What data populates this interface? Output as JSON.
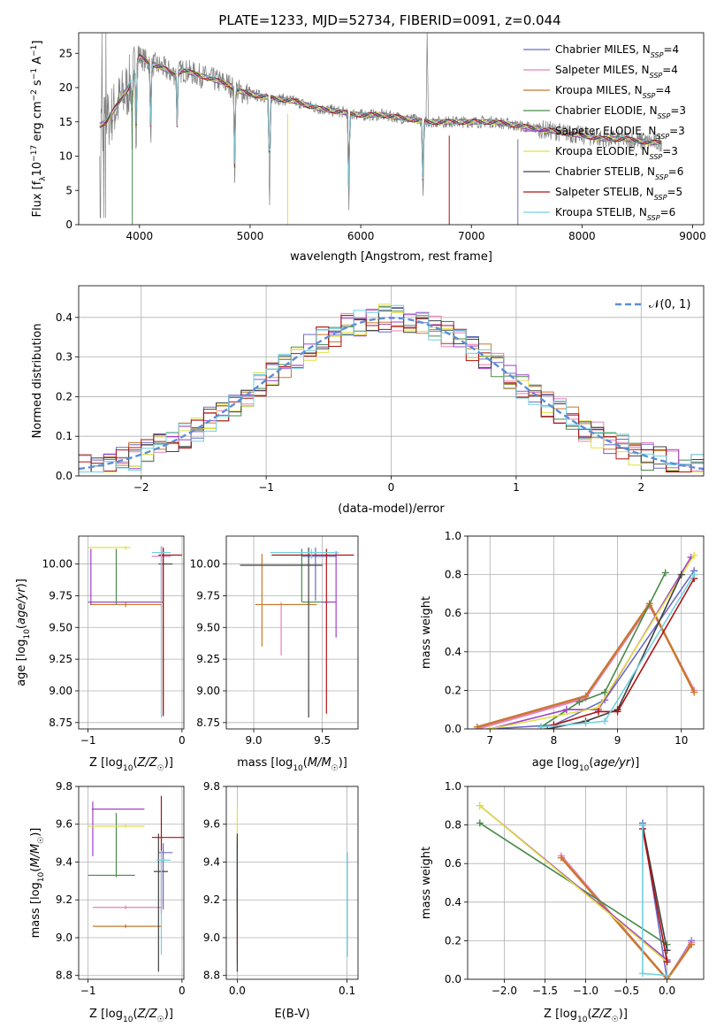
{
  "figure": {
    "title": "PLATE=1233, MJD=52734, FIBERID=0091, z=0.044"
  },
  "model_colors": [
    "#6a6ac8",
    "#e87fb8",
    "#c8782c",
    "#4a8a4a",
    "#a040c8",
    "#e0e040",
    "#404040",
    "#b01010",
    "#70d0e0"
  ],
  "chart_data": [
    {
      "id": "spectrum",
      "type": "line",
      "title": "PLATE=1233, MJD=52734, FIBERID=0091, z=0.044",
      "xlabel": "wavelength [Angstrom, rest frame]",
      "ylabel": "Flux [f_λ 10^-17 erg cm^-2 s^-1 A^-1]",
      "xlim": [
        3450,
        9100
      ],
      "ylim": [
        0,
        28
      ],
      "xticks": [
        4000,
        5000,
        6000,
        7000,
        8000,
        9000
      ],
      "yticks": [
        0,
        5,
        10,
        15,
        20,
        25
      ],
      "grid": false,
      "legend_position": "top-right",
      "data_color": "#808080",
      "continuum_x": [
        3640,
        3700,
        3800,
        3900,
        4000,
        4100,
        4200,
        4300,
        4400,
        4500,
        4600,
        4700,
        4800,
        4900,
        5000,
        5200,
        5400,
        5600,
        5800,
        6000,
        6200,
        6400,
        6600,
        6800,
        7000,
        7200,
        7400,
        7600,
        7800,
        8000,
        8200,
        8400,
        8600,
        8800,
        9000
      ],
      "continuum_y": [
        14.5,
        15.0,
        17.5,
        20.0,
        24.5,
        23.5,
        23.0,
        22.0,
        22.5,
        22.0,
        21.5,
        21.0,
        20.5,
        19.5,
        19.0,
        18.5,
        18.0,
        17.0,
        16.5,
        16.0,
        16.0,
        15.5,
        15.0,
        15.0,
        15.0,
        15.0,
        14.5,
        14.0,
        13.5,
        13.0,
        12.5,
        12.5,
        12.0,
        12.0,
        12.0
      ],
      "data_end_x": 8720,
      "absorption_dips": [
        [
          3934,
          8.0
        ],
        [
          3969,
          10.0
        ],
        [
          4102,
          11.0
        ],
        [
          4340,
          8.5
        ],
        [
          4861,
          13.0
        ],
        [
          5175,
          17.0
        ],
        [
          5893,
          15.0
        ],
        [
          6563,
          12.0
        ]
      ],
      "model_dropouts": [
        3935,
        5340,
        6800,
        7420
      ],
      "series": [
        {
          "name": "Chabrier MILES, N",
          "sub": "SSP",
          "tail": "=4"
        },
        {
          "name": "Salpeter MILES, N",
          "sub": "SSP",
          "tail": "=4"
        },
        {
          "name": "Kroupa MILES, N",
          "sub": "SSP",
          "tail": "=4"
        },
        {
          "name": "Chabrier ELODIE, N",
          "sub": "SSP",
          "tail": "=3"
        },
        {
          "name": "Salpeter ELODIE, N",
          "sub": "SSP",
          "tail": "=3"
        },
        {
          "name": "Kroupa ELODIE, N",
          "sub": "SSP",
          "tail": "=3"
        },
        {
          "name": "Chabrier STELIB, N",
          "sub": "SSP",
          "tail": "=6"
        },
        {
          "name": "Salpeter STELIB, N",
          "sub": "SSP",
          "tail": "=5"
        },
        {
          "name": "Kroupa STELIB, N",
          "sub": "SSP",
          "tail": "=6"
        }
      ]
    },
    {
      "id": "residuals",
      "type": "line",
      "xlabel": "(data-model)/error",
      "ylabel": "Normed distribution",
      "xlim": [
        -2.5,
        2.5
      ],
      "ylim": [
        0,
        0.48
      ],
      "xticks": [
        -2,
        -1,
        0,
        1,
        2
      ],
      "yticks": [
        0.0,
        0.1,
        0.2,
        0.3,
        0.4
      ],
      "grid": true,
      "legend_position": "top-right",
      "legend_label": "𝒩(0, 1)",
      "gaussian_color": "#5b8fd6",
      "bin_edges_start": -2.5,
      "bin_width": 0.1,
      "bins": 50
    },
    {
      "id": "age-vs-Z",
      "type": "scatter",
      "xlabel": "Z [log10(Z/Z☉)]",
      "ylabel": "age  [log10(age/yr)]",
      "xlim": [
        -1.1,
        0.02
      ],
      "ylim": [
        8.7,
        10.22
      ],
      "xticks": [
        -1,
        0
      ],
      "yticks": [
        8.75,
        9.0,
        9.25,
        9.5,
        9.75,
        10.0
      ],
      "grid": true,
      "points": [
        {
          "series": 0,
          "x": -0.22,
          "y": 10.06,
          "xerr": 0.1,
          "yerr": [
            0.4,
            0.08
          ]
        },
        {
          "series": 1,
          "x": -0.22,
          "y": 10.06,
          "xerr": 0.1,
          "yerr": [
            0.4,
            0.08
          ]
        },
        {
          "series": 2,
          "x": -0.6,
          "y": 9.68,
          "xerr": [
            0.38,
            0.38
          ],
          "yerr": [
            0.02,
            0.02
          ]
        },
        {
          "series": 3,
          "x": -0.7,
          "y": 9.7,
          "xerr": [
            0.3,
            0.5
          ],
          "yerr": [
            0.02,
            0.42
          ]
        },
        {
          "series": 4,
          "x": -0.97,
          "y": 9.7,
          "xerr": [
            0.02,
            0.75
          ],
          "yerr": [
            0.02,
            0.42
          ]
        },
        {
          "series": 5,
          "x": -0.6,
          "y": 10.13,
          "xerr": [
            0.4,
            0.05
          ],
          "yerr": [
            0.02,
            0.01
          ]
        },
        {
          "series": 6,
          "x": -0.2,
          "y": 10.0,
          "xerr": [
            0.05,
            0.1
          ],
          "yerr": [
            1.2,
            0.12
          ]
        },
        {
          "series": 7,
          "x": -0.2,
          "y": 10.07,
          "xerr": [
            0.05,
            0.2
          ],
          "yerr": [
            1.25,
            0.06
          ]
        },
        {
          "series": 8,
          "x": -0.22,
          "y": 10.09,
          "xerr": 0.1,
          "yerr": [
            1.3,
            0.03
          ]
        }
      ]
    },
    {
      "id": "age-vs-mass",
      "type": "scatter",
      "xlabel": "mass [log10(M/M☉)]",
      "ylabel": "",
      "xlim": [
        8.8,
        9.76
      ],
      "ylim": [
        8.7,
        10.22
      ],
      "xticks": [
        9.0,
        9.5
      ],
      "yticks": [
        8.75,
        9.0,
        9.25,
        9.5,
        9.75,
        10.0
      ],
      "grid": true,
      "points": [
        {
          "series": 0,
          "x": 9.45,
          "y": 10.06,
          "xerr": [
            0.1,
            0.15
          ],
          "yerr": [
            0.35,
            0.07
          ]
        },
        {
          "series": 1,
          "x": 9.2,
          "y": 9.68,
          "xerr": [
            0.1,
            0.2
          ],
          "yerr": [
            0.4,
            0.02
          ]
        },
        {
          "series": 2,
          "x": 9.06,
          "y": 9.68,
          "xerr": [
            0.05,
            0.4
          ],
          "yerr": [
            0.33,
            0.4
          ]
        },
        {
          "series": 3,
          "x": 9.35,
          "y": 9.7,
          "xerr": [
            0.0,
            0.2
          ],
          "yerr": [
            0.0,
            0.42
          ]
        },
        {
          "series": 4,
          "x": 9.6,
          "y": 9.7,
          "xerr": [
            0.1,
            0.0
          ],
          "yerr": [
            0.28,
            0.4
          ]
        },
        {
          "series": 5,
          "x": 9.6,
          "y": 10.13,
          "xerr": [
            0.0,
            0.0
          ],
          "yerr": [
            0.0,
            0.0
          ]
        },
        {
          "series": 6,
          "x": 9.4,
          "y": 9.99,
          "xerr": [
            0.5,
            0.1
          ],
          "yerr": [
            1.2,
            0.14
          ]
        },
        {
          "series": 7,
          "x": 9.53,
          "y": 10.07,
          "xerr": [
            0.4,
            0.2
          ],
          "yerr": [
            1.25,
            0.05
          ]
        },
        {
          "series": 8,
          "x": 9.42,
          "y": 10.09,
          "xerr": [
            0.3,
            0.2
          ],
          "yerr": [
            0.05,
            0.03
          ]
        }
      ]
    },
    {
      "id": "mass-weight-vs-age",
      "type": "line",
      "xlabel": "age  [log10(age/yr)]",
      "ylabel": "mass weight",
      "xlim": [
        6.65,
        10.35
      ],
      "ylim": [
        0.0,
        1.0
      ],
      "xticks": [
        7,
        8,
        9,
        10
      ],
      "yticks": [
        0.0,
        0.2,
        0.4,
        0.6,
        0.8,
        1.0
      ],
      "grid": true,
      "series": [
        {
          "series": 0,
          "x": [
            7.0,
            8.0,
            8.8,
            10.2
          ],
          "y": [
            0.0,
            0.02,
            0.15,
            0.82
          ]
        },
        {
          "series": 1,
          "x": [
            6.8,
            8.5,
            9.5,
            10.2
          ],
          "y": [
            0.0,
            0.16,
            0.64,
            0.2
          ]
        },
        {
          "series": 2,
          "x": [
            6.8,
            8.5,
            9.5,
            10.2
          ],
          "y": [
            0.01,
            0.17,
            0.65,
            0.19
          ]
        },
        {
          "series": 3,
          "x": [
            7.8,
            8.4,
            8.8,
            9.75
          ],
          "y": [
            0.01,
            0.14,
            0.19,
            0.81
          ]
        },
        {
          "series": 4,
          "x": [
            7.0,
            8.2,
            8.7,
            10.15
          ],
          "y": [
            0.0,
            0.1,
            0.1,
            0.89
          ]
        },
        {
          "series": 5,
          "x": [
            7.0,
            8.7,
            10.2
          ],
          "y": [
            0.0,
            0.11,
            0.9
          ]
        },
        {
          "series": 6,
          "x": [
            7.9,
            8.5,
            9.0,
            10.0
          ],
          "y": [
            0.0,
            0.04,
            0.1,
            0.8
          ]
        },
        {
          "series": 7,
          "x": [
            8.0,
            8.7,
            9.0,
            10.2
          ],
          "y": [
            0.02,
            0.09,
            0.09,
            0.78
          ]
        },
        {
          "series": 8,
          "x": [
            7.8,
            8.5,
            8.8,
            10.2
          ],
          "y": [
            0.01,
            0.03,
            0.04,
            0.8
          ]
        }
      ]
    },
    {
      "id": "mass-vs-Z",
      "type": "scatter",
      "xlabel": "Z [log10(Z/Z☉)]",
      "ylabel": "mass [log10(M/M☉)]",
      "xlim": [
        -1.1,
        0.02
      ],
      "ylim": [
        8.78,
        9.8
      ],
      "xticks": [
        -1,
        0
      ],
      "yticks": [
        8.8,
        9.0,
        9.2,
        9.4,
        9.6,
        9.8
      ],
      "grid": true,
      "points": [
        {
          "series": 0,
          "x": -0.2,
          "y": 9.45,
          "xerr": [
            0.05,
            0.1
          ],
          "yerr": [
            0.3,
            0.05
          ]
        },
        {
          "series": 1,
          "x": -0.6,
          "y": 9.16,
          "xerr": [
            0.35,
            0.38
          ],
          "yerr": [
            0.01,
            0.01
          ]
        },
        {
          "series": 2,
          "x": -0.6,
          "y": 9.06,
          "xerr": [
            0.35,
            0.38
          ],
          "yerr": [
            0.01,
            0.01
          ]
        },
        {
          "series": 3,
          "x": -0.7,
          "y": 9.33,
          "xerr": [
            0.3,
            0.2
          ],
          "yerr": [
            0.01,
            0.33
          ]
        },
        {
          "series": 4,
          "x": -0.95,
          "y": 9.68,
          "xerr": [
            0.01,
            0.55
          ],
          "yerr": [
            0.25,
            0.04
          ]
        },
        {
          "series": 5,
          "x": -0.6,
          "y": 9.59,
          "xerr": [
            0.4,
            0.2
          ],
          "yerr": [
            0.01,
            0.01
          ]
        },
        {
          "series": 6,
          "x": -0.25,
          "y": 9.35,
          "xerr": [
            0.05,
            0.1
          ],
          "yerr": [
            0.53,
            0.2
          ]
        },
        {
          "series": 7,
          "x": -0.22,
          "y": 9.53,
          "xerr": [
            0.1,
            0.3
          ],
          "yerr": [
            0.4,
            0.22
          ]
        },
        {
          "series": 8,
          "x": -0.22,
          "y": 9.41,
          "xerr": [
            0.05,
            0.1
          ],
          "yerr": [
            0.5,
            0.05
          ]
        }
      ]
    },
    {
      "id": "mass-vs-ebv",
      "type": "scatter",
      "xlabel": "E(B-V)",
      "ylabel": "",
      "xlim": [
        -0.01,
        0.11
      ],
      "ylim": [
        8.78,
        9.8
      ],
      "xticks": [
        0.0,
        0.1
      ],
      "yticks": [
        8.8,
        9.0,
        9.2,
        9.4,
        9.6,
        9.8
      ],
      "grid": true,
      "points": [
        {
          "series": 0,
          "x": 0.0,
          "y": 9.45,
          "xerr": 0,
          "yerr": [
            0.3,
            0.05
          ]
        },
        {
          "series": 1,
          "x": 0.0,
          "y": 9.16,
          "xerr": 0,
          "yerr": [
            0.2,
            0.2
          ]
        },
        {
          "series": 2,
          "x": 0.0,
          "y": 9.06,
          "xerr": 0,
          "yerr": [
            0.2,
            0.2
          ]
        },
        {
          "series": 3,
          "x": 0.0,
          "y": 9.33,
          "xerr": 0,
          "yerr": [
            0.2,
            0.2
          ]
        },
        {
          "series": 4,
          "x": 0.1,
          "y": 9.2,
          "xerr": 0,
          "yerr": [
            0.3,
            0.25
          ]
        },
        {
          "series": 5,
          "x": 0.0,
          "y": 9.59,
          "xerr": 0,
          "yerr": [
            0.1,
            0.1
          ]
        },
        {
          "series": 6,
          "x": 0.0,
          "y": 9.35,
          "xerr": 0,
          "yerr": [
            0.53,
            0.2
          ]
        },
        {
          "series": 7,
          "x": 0.1,
          "y": 9.15,
          "xerr": 0,
          "yerr": [
            0.25,
            0.3
          ]
        },
        {
          "series": 8,
          "x": 0.1,
          "y": 9.2,
          "xerr": 0,
          "yerr": [
            0.3,
            0.25
          ]
        }
      ]
    },
    {
      "id": "mass-weight-vs-Z",
      "type": "line",
      "xlabel": "Z [log10(Z/Z☉)]",
      "ylabel": "mass weight",
      "xlim": [
        -2.45,
        0.45
      ],
      "ylim": [
        0.0,
        1.0
      ],
      "xticks": [
        -2.0,
        -1.5,
        -1.0,
        -0.5,
        0.0
      ],
      "yticks": [
        0.0,
        0.2,
        0.4,
        0.6,
        0.8,
        1.0
      ],
      "grid": true,
      "series": [
        {
          "series": 0,
          "x": [
            -0.3,
            0.0,
            0.3
          ],
          "y": [
            0.81,
            0.0,
            0.2
          ]
        },
        {
          "series": 1,
          "x": [
            -1.3,
            0.0,
            0.3
          ],
          "y": [
            0.64,
            0.0,
            0.19
          ]
        },
        {
          "series": 2,
          "x": [
            -1.3,
            0.0,
            0.3
          ],
          "y": [
            0.63,
            0.0,
            0.18
          ]
        },
        {
          "series": 3,
          "x": [
            -2.3,
            0.0
          ],
          "y": [
            0.81,
            0.18
          ]
        },
        {
          "series": 4,
          "x": [
            -2.3,
            0.0
          ],
          "y": [
            0.9,
            0.1
          ]
        },
        {
          "series": 5,
          "x": [
            -2.3,
            0.0
          ],
          "y": [
            0.9,
            0.09
          ]
        },
        {
          "series": 6,
          "x": [
            -0.3,
            0.0
          ],
          "y": [
            0.8,
            0.15
          ]
        },
        {
          "series": 7,
          "x": [
            -0.3,
            0.0
          ],
          "y": [
            0.78,
            0.09
          ]
        },
        {
          "series": 8,
          "x": [
            -0.3,
            -0.3,
            0.0
          ],
          "y": [
            0.8,
            0.03,
            0.02
          ]
        }
      ]
    }
  ]
}
